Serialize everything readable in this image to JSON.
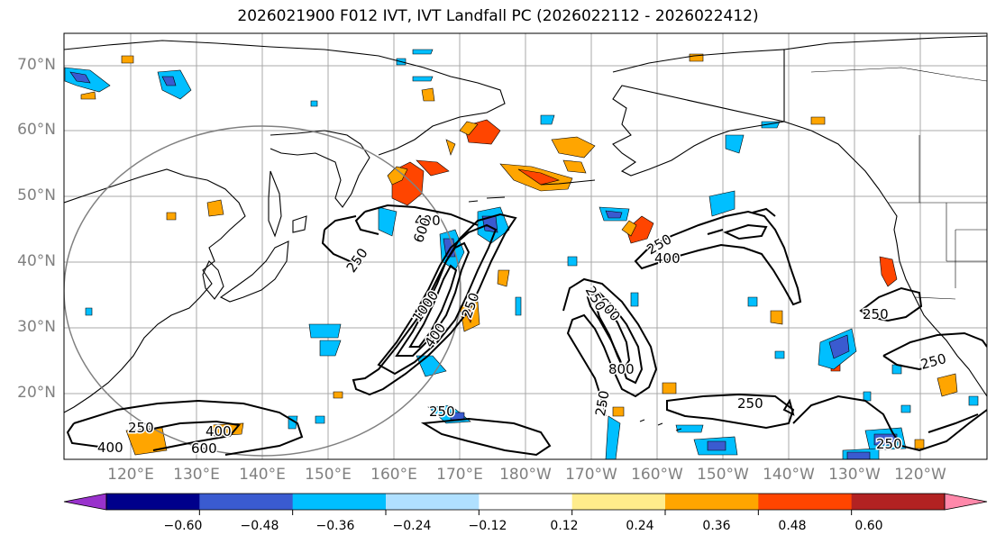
{
  "title": "2026021900 F012 IVT, IVT Landfall PC (2026022112 - 2026022412)",
  "lat_labels": [
    "70°N",
    "60°N",
    "50°N",
    "40°N",
    "30°N",
    "20°N"
  ],
  "lon_labels": [
    "120°E",
    "130°E",
    "140°E",
    "150°E",
    "160°E",
    "170°E",
    "180°W",
    "170°W",
    "160°W",
    "150°W",
    "140°W",
    "130°W",
    "120°W"
  ],
  "contour_labels": [
    "250",
    "400",
    "600",
    "1000",
    "400",
    "250",
    "600",
    "800",
    "250",
    "250",
    "400",
    "250",
    "250",
    "250",
    "250",
    "250",
    "400",
    "600",
    "250",
    "400",
    "250"
  ],
  "colorbar": {
    "colors": [
      "#9932cc",
      "#00008b",
      "#3a5bd0",
      "#00bfff",
      "#b0e0ff",
      "#ffffff",
      "#ffec8b",
      "#ffa500",
      "#ff4500",
      "#b22222",
      "#ff88aa"
    ],
    "tick_labels": [
      "−0.60",
      "−0.48",
      "−0.36",
      "−0.24",
      "−0.12",
      "0.12",
      "0.24",
      "0.36",
      "0.48",
      "0.60"
    ]
  }
}
